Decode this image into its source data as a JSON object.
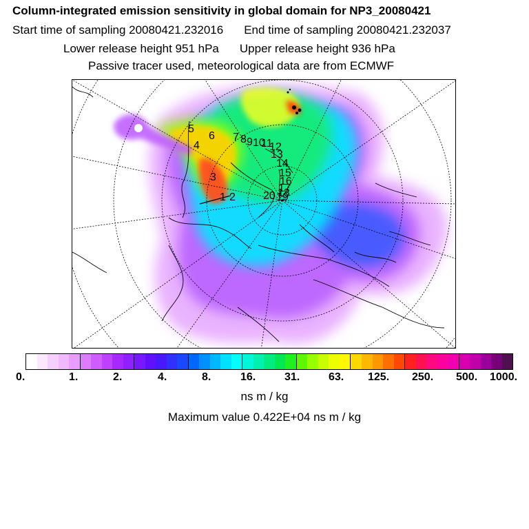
{
  "header": {
    "title": "Column-integrated emission sensitivity in global domain for NP3_20080421",
    "start_time": "Start time of sampling 20080421.232016",
    "end_time": "End time of sampling 20080421.232037",
    "lower_release": "Lower release height  951 hPa",
    "upper_release": "Upper release height  936 hPa",
    "tracer_note": "Passive tracer used, meteorological data are from ECMWF"
  },
  "map": {
    "projection": "north-polar-stereographic",
    "track_labels": [
      "1",
      "2",
      "3",
      "4",
      "5",
      "6",
      "7",
      "8",
      "9",
      "10",
      "11",
      "12",
      "13",
      "14",
      "15",
      "16",
      "17",
      "18",
      "19",
      "20"
    ]
  },
  "colorbar": {
    "colors": [
      "#ffffff",
      "#fbe8ff",
      "#f5d0ff",
      "#efb8ff",
      "#e89cff",
      "#de7cff",
      "#d05cff",
      "#c040ff",
      "#a828ff",
      "#9020ff",
      "#7818ff",
      "#6010ff",
      "#4818ff",
      "#3030ff",
      "#1848ff",
      "#0068ff",
      "#0090ff",
      "#00b8ff",
      "#00e0ff",
      "#00ffff",
      "#00f8d8",
      "#00f0b0",
      "#00ec80",
      "#00e850",
      "#20f020",
      "#60f800",
      "#98ff00",
      "#c8ff00",
      "#ecff00",
      "#fff800",
      "#ffd800",
      "#ffb800",
      "#ff9800",
      "#ff7000",
      "#ff4800",
      "#ff2020",
      "#ff1050",
      "#ff0880",
      "#ff00a0",
      "#f000b0",
      "#d800b0",
      "#c000a8",
      "#9c009c",
      "#780078",
      "#501050"
    ],
    "tick_labels": [
      "0.",
      "1.",
      "2.",
      "4.",
      "8.",
      "16.",
      "31.",
      "63.",
      "125.",
      "250.",
      "500.",
      "1000."
    ],
    "units": "ns m / kg"
  },
  "footer": {
    "maximum": "Maximum value  0.422E+04 ns m / kg"
  }
}
